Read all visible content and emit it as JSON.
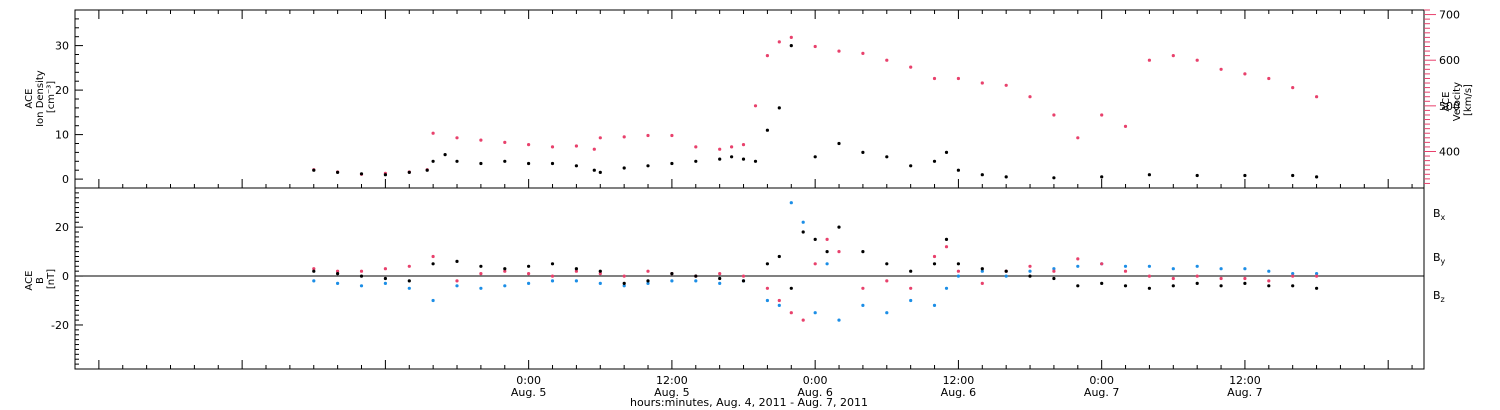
{
  "colors": {
    "black": "#000000",
    "red": "#e8416c",
    "blue": "#1c8ee6",
    "frame": "#000000",
    "background": "#ffffff"
  },
  "chart_data": [
    {
      "type": "scatter",
      "panel": "plasma",
      "left_axis": {
        "label_lines": [
          "ACE",
          "Ion Density",
          "[cm⁻³]"
        ],
        "ylim": [
          -2,
          38
        ],
        "ticks": [
          0,
          10,
          20,
          30
        ],
        "color": "#000000"
      },
      "right_axis": {
        "label_lines": [
          "ACE",
          "Velocity",
          "[km/s]"
        ],
        "ylim": [
          320,
          710
        ],
        "ticks": [
          400,
          500,
          600,
          700
        ],
        "color": "#e8416c"
      },
      "x_hours": [
        -18,
        -16,
        -14,
        -12,
        -10,
        -8,
        -6,
        -4,
        -2,
        0,
        2,
        4,
        6,
        8,
        10,
        12,
        14,
        16,
        18,
        20,
        22,
        24,
        26,
        28,
        30,
        32,
        34,
        36,
        38,
        40,
        42,
        44,
        46,
        48,
        50,
        52,
        54,
        56,
        58,
        60,
        62,
        64,
        66,
        68
      ],
      "series": [
        {
          "name": "Ion Density",
          "axis": "left",
          "color": "#000000",
          "x": [
            -18,
            -16,
            -14,
            -12,
            -10,
            -8.5,
            -8,
            -7,
            -6,
            -4,
            -2,
            0,
            2,
            4,
            5.5,
            6,
            8,
            10,
            12,
            14,
            16,
            17,
            18,
            19,
            20,
            21,
            22,
            24,
            26,
            28,
            30,
            32,
            34,
            35,
            36,
            38,
            40,
            44,
            48,
            52,
            56,
            60,
            64,
            66
          ],
          "values": [
            2,
            1.5,
            1.2,
            1,
            1.5,
            2,
            4,
            5.5,
            4,
            3.5,
            4,
            3.5,
            3.5,
            3,
            2,
            1.5,
            2.5,
            3,
            3.5,
            4,
            4.5,
            5,
            4.5,
            4,
            11,
            16,
            30,
            5,
            8,
            6,
            5,
            3,
            4,
            6,
            2,
            1,
            0.5,
            0.3,
            0.5,
            1,
            0.8,
            0.8,
            0.8,
            0.5
          ]
        },
        {
          "name": "Velocity",
          "axis": "right",
          "color": "#e8416c",
          "x": [
            -18,
            -16,
            -14,
            -12,
            -10,
            -8.5,
            -8,
            -6,
            -4,
            -2,
            0,
            2,
            4,
            5.5,
            6,
            8,
            10,
            12,
            14,
            16,
            17,
            18,
            19,
            20,
            21,
            22,
            24,
            26,
            28,
            30,
            32,
            34,
            36,
            38,
            40,
            42,
            44,
            46,
            48,
            50,
            52,
            54,
            56,
            58,
            60,
            62,
            64,
            66
          ],
          "values": [
            360,
            355,
            350,
            352,
            355,
            360,
            440,
            430,
            425,
            420,
            415,
            410,
            412,
            405,
            430,
            432,
            435,
            435,
            410,
            405,
            410,
            415,
            500,
            610,
            640,
            650,
            630,
            620,
            615,
            600,
            585,
            560,
            560,
            550,
            545,
            520,
            480,
            430,
            480,
            455,
            600,
            610,
            600,
            580,
            570,
            560,
            540,
            520
          ]
        }
      ]
    },
    {
      "type": "scatter",
      "panel": "magnetic-field",
      "left_axis": {
        "label_lines": [
          "ACE",
          "B",
          "[nT]"
        ],
        "ylim": [
          -38,
          36
        ],
        "ticks": [
          -20,
          0,
          20
        ],
        "color": "#000000"
      },
      "series": [
        {
          "name": "Bx",
          "color": "#000000",
          "x": [
            -18,
            -16,
            -14,
            -12,
            -10,
            -8,
            -6,
            -4,
            -2,
            0,
            2,
            4,
            6,
            8,
            10,
            12,
            14,
            16,
            18,
            20,
            21,
            22,
            23,
            24,
            25,
            26,
            28,
            30,
            32,
            34,
            35,
            36,
            38,
            40,
            42,
            44,
            46,
            48,
            50,
            52,
            54,
            56,
            58,
            60,
            62,
            64,
            66
          ],
          "values": [
            2,
            1,
            0,
            -1,
            -2,
            5,
            6,
            4,
            3,
            4,
            5,
            3,
            2,
            -3,
            -2,
            1,
            0,
            -1,
            -2,
            5,
            8,
            -5,
            18,
            15,
            10,
            20,
            10,
            5,
            2,
            5,
            15,
            5,
            3,
            2,
            0,
            -1,
            -4,
            -3,
            -4,
            -5,
            -4,
            -3,
            -4,
            -3,
            -4,
            -4,
            -5
          ]
        },
        {
          "name": "By",
          "color": "#1c8ee6",
          "x": [
            -18,
            -16,
            -14,
            -12,
            -10,
            -8,
            -6,
            -4,
            -2,
            0,
            2,
            4,
            6,
            8,
            10,
            12,
            14,
            16,
            18,
            20,
            21,
            22,
            23,
            24,
            25,
            26,
            28,
            30,
            32,
            34,
            35,
            36,
            38,
            40,
            42,
            44,
            46,
            48,
            50,
            52,
            54,
            56,
            58,
            60,
            62,
            64,
            66
          ],
          "values": [
            -2,
            -3,
            -4,
            -3,
            -5,
            -10,
            -4,
            -5,
            -4,
            -3,
            -2,
            -2,
            -3,
            -4,
            -3,
            -2,
            -2,
            -3,
            -2,
            -10,
            -12,
            30,
            22,
            -15,
            5,
            -18,
            -12,
            -15,
            -10,
            -12,
            -5,
            0,
            2,
            0,
            2,
            3,
            4,
            5,
            4,
            4,
            3,
            4,
            3,
            3,
            2,
            1,
            1
          ]
        },
        {
          "name": "Bz",
          "color": "#e8416c",
          "x": [
            -18,
            -16,
            -14,
            -12,
            -10,
            -8,
            -6,
            -4,
            -2,
            0,
            2,
            4,
            6,
            8,
            10,
            12,
            14,
            16,
            18,
            20,
            21,
            22,
            23,
            24,
            25,
            26,
            28,
            30,
            32,
            34,
            35,
            36,
            38,
            40,
            42,
            44,
            46,
            48,
            50,
            52,
            54,
            56,
            58,
            60,
            62,
            64,
            66
          ],
          "values": [
            3,
            2,
            2,
            3,
            4,
            8,
            -2,
            1,
            2,
            1,
            0,
            2,
            1,
            0,
            2,
            1,
            0,
            1,
            0,
            -5,
            -10,
            -15,
            -18,
            5,
            15,
            10,
            -5,
            -2,
            -5,
            8,
            12,
            2,
            -3,
            2,
            4,
            2,
            7,
            5,
            2,
            0,
            -1,
            0,
            -1,
            -1,
            -2,
            0,
            0
          ]
        }
      ],
      "legend": [
        {
          "label": "B",
          "subscript": "x",
          "color": "#000000"
        },
        {
          "label": "B",
          "subscript": "y",
          "color": "#1c8ee6"
        },
        {
          "label": "B",
          "subscript": "z",
          "color": "#e8416c"
        }
      ]
    }
  ],
  "x_axis": {
    "range_hours": [
      -38,
      75
    ],
    "major_ticks": [
      {
        "hour": 0,
        "time": "0:00",
        "date": "Aug. 5"
      },
      {
        "hour": 12,
        "time": "12:00",
        "date": "Aug. 5"
      },
      {
        "hour": 24,
        "time": "0:00",
        "date": "Aug. 6"
      },
      {
        "hour": 36,
        "time": "12:00",
        "date": "Aug. 6"
      },
      {
        "hour": 48,
        "time": "0:00",
        "date": "Aug. 7"
      },
      {
        "hour": 60,
        "time": "12:00",
        "date": "Aug. 7"
      }
    ],
    "caption": "hours:minutes, Aug.  4, 2011 - Aug.  7, 2011"
  }
}
